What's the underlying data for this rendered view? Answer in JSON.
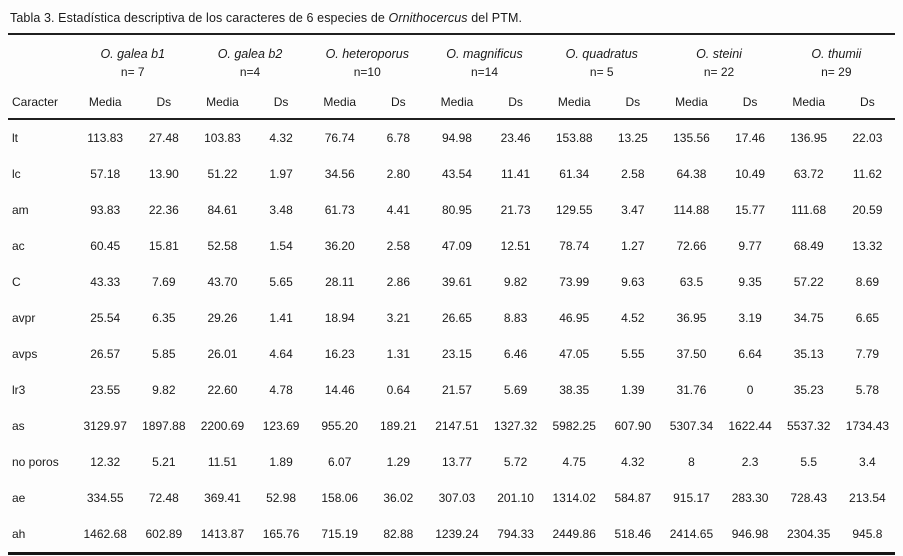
{
  "title": {
    "prefix": "Tabla 3. Estadística descriptiva de los caracteres de 6 especies de ",
    "italic": "Ornithocercus",
    "suffix": " del PTM."
  },
  "table": {
    "caracter_header": "Caracter",
    "subheaders": [
      "Media",
      "Ds"
    ],
    "species": [
      {
        "name": "O. galea  b1",
        "n": "n= 7"
      },
      {
        "name": "O. galea b2",
        "n": "n=4"
      },
      {
        "name": "O. heteroporus",
        "n": "n=10"
      },
      {
        "name": "O. magnificus",
        "n": "n=14"
      },
      {
        "name": "O. quadratus",
        "n": "n= 5"
      },
      {
        "name": "O. steini",
        "n": "n= 22"
      },
      {
        "name": "O. thumii",
        "n": "n= 29"
      }
    ],
    "rows": [
      {
        "caracter": "lt",
        "values": [
          "113.83",
          "27.48",
          "103.83",
          "4.32",
          "76.74",
          "6.78",
          "94.98",
          "23.46",
          "153.88",
          "13.25",
          "135.56",
          "17.46",
          "136.95",
          "22.03"
        ]
      },
      {
        "caracter": "lc",
        "values": [
          "57.18",
          "13.90",
          "51.22",
          "1.97",
          "34.56",
          "2.80",
          "43.54",
          "11.41",
          "61.34",
          "2.58",
          "64.38",
          "10.49",
          "63.72",
          "11.62"
        ]
      },
      {
        "caracter": "am",
        "values": [
          "93.83",
          "22.36",
          "84.61",
          "3.48",
          "61.73",
          "4.41",
          "80.95",
          "21.73",
          "129.55",
          "3.47",
          "114.88",
          "15.77",
          "111.68",
          "20.59"
        ]
      },
      {
        "caracter": "ac",
        "values": [
          "60.45",
          "15.81",
          "52.58",
          "1.54",
          "36.20",
          "2.58",
          "47.09",
          "12.51",
          "78.74",
          "1.27",
          "72.66",
          "9.77",
          "68.49",
          "13.32"
        ]
      },
      {
        "caracter": "C",
        "values": [
          "43.33",
          "7.69",
          "43.70",
          "5.65",
          "28.11",
          "2.86",
          "39.61",
          "9.82",
          "73.99",
          "9.63",
          "63.5",
          "9.35",
          "57.22",
          "8.69"
        ]
      },
      {
        "caracter": "avpr",
        "values": [
          "25.54",
          "6.35",
          "29.26",
          "1.41",
          "18.94",
          "3.21",
          "26.65",
          "8.83",
          "46.95",
          "4.52",
          "36.95",
          "3.19",
          "34.75",
          "6.65"
        ]
      },
      {
        "caracter": "avps",
        "values": [
          "26.57",
          "5.85",
          "26.01",
          "4.64",
          "16.23",
          "1.31",
          "23.15",
          "6.46",
          "47.05",
          "5.55",
          "37.50",
          "6.64",
          "35.13",
          "7.79"
        ]
      },
      {
        "caracter": "lr3",
        "values": [
          "23.55",
          "9.82",
          "22.60",
          "4.78",
          "14.46",
          "0.64",
          "21.57",
          "5.69",
          "38.35",
          "1.39",
          "31.76",
          "0",
          "35.23",
          "5.78"
        ]
      },
      {
        "caracter": "as",
        "values": [
          "3129.97",
          "1897.88",
          "2200.69",
          "123.69",
          "955.20",
          "189.21",
          "2147.51",
          "1327.32",
          "5982.25",
          "607.90",
          "5307.34",
          "1622.44",
          "5537.32",
          "1734.43"
        ]
      },
      {
        "caracter": "no poros",
        "values": [
          "12.32",
          "5.21",
          "11.51",
          "1.89",
          "6.07",
          "1.29",
          "13.77",
          "5.72",
          "4.75",
          "4.32",
          "8",
          "2.3",
          "5.5",
          "3.4"
        ]
      },
      {
        "caracter": "ae",
        "values": [
          "334.55",
          "72.48",
          "369.41",
          "52.98",
          "158.06",
          "36.02",
          "307.03",
          "201.10",
          "1314.02",
          "584.87",
          "915.17",
          "283.30",
          "728.43",
          "213.54"
        ]
      },
      {
        "caracter": "ah",
        "values": [
          "1462.68",
          "602.89",
          "1413.87",
          "165.76",
          "715.19",
          "82.88",
          "1239.24",
          "794.33",
          "2449.86",
          "518.46",
          "2414.65",
          "946.98",
          "2304.35",
          "945.8"
        ]
      }
    ]
  }
}
